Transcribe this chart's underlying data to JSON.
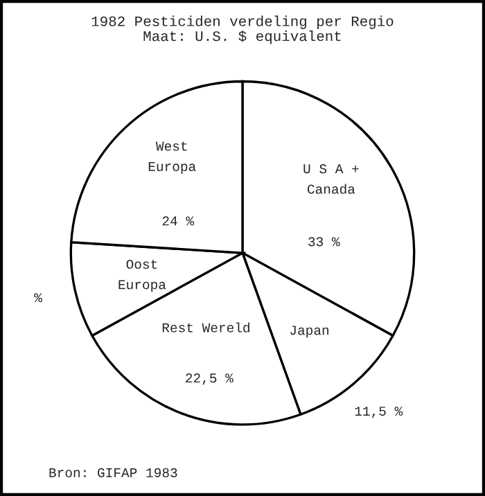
{
  "chart_data": {
    "type": "pie",
    "title": "1982 Pesticiden verdeling per Regio",
    "subtitle": "Maat: U.S. $ equivalent",
    "categories": [
      "U S A +\nCanada",
      "Japan",
      "Rest Wereld",
      "Oost\nEuropa",
      "West\nEuropa"
    ],
    "values": [
      33,
      11.5,
      22.5,
      9,
      24
    ],
    "value_labels": [
      "33 %",
      "11,5 %",
      "22,5 %",
      "%",
      "24 %"
    ],
    "colors": [
      "#ffffff",
      "#ffffff",
      "#ffffff",
      "#ffffff",
      "#ffffff"
    ],
    "annotations": [
      "Bron: GIFAP 1983"
    ]
  }
}
